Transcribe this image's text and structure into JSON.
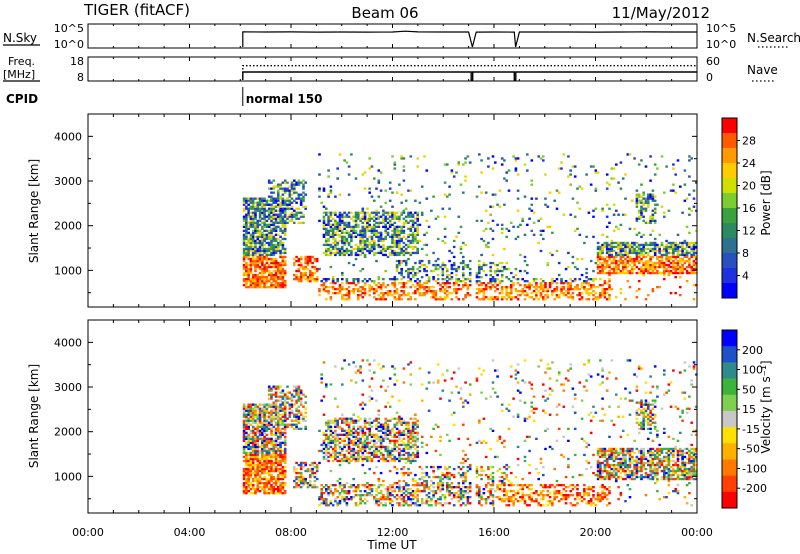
{
  "header": {
    "title": "TIGER (fitACF)",
    "beam": "Beam 06",
    "date": "11/May/2012"
  },
  "chart_data": [
    {
      "type": "line",
      "panel": "noise",
      "left_label": "N.Sky",
      "right_label": "N.Search",
      "left_ticks": [
        "10^5",
        "10^0"
      ],
      "right_ticks": [
        "10^5",
        "10^0"
      ],
      "y_scale": "log",
      "ylim": [
        1,
        100000
      ],
      "x_hours": [
        6.1,
        7,
        8,
        9,
        10,
        11,
        12,
        12.5,
        13,
        14,
        15,
        15.15,
        15.3,
        16,
        16.8,
        16.85,
        17,
        18,
        19,
        20,
        21,
        22,
        23,
        24
      ],
      "n_sky": [
        6000,
        5500,
        6000,
        5200,
        5600,
        5400,
        5600,
        9000,
        5800,
        5500,
        5600,
        1,
        5400,
        5500,
        5400,
        1,
        5500,
        5600,
        5700,
        5400,
        5600,
        6000,
        5600,
        5600
      ],
      "gaps_hours": [
        15.1,
        16.8
      ]
    },
    {
      "type": "line",
      "panel": "frequency",
      "left_label_lines": [
        "Freq.",
        "[MHz]"
      ],
      "right_label": "Nave",
      "left_ticks": [
        "18",
        "8"
      ],
      "right_ticks": [
        "60",
        "0"
      ],
      "ylim": [
        8,
        18
      ],
      "freq_mhz": 11.8,
      "nave": 41,
      "start_hour": 6.1,
      "gaps_hours": [
        15.1,
        16.8
      ]
    },
    {
      "type": "table",
      "panel": "cpid",
      "label": "CPID",
      "segments": [
        {
          "start_hour": 6.1,
          "label": "normal 150"
        }
      ]
    },
    {
      "type": "heatmap",
      "panel": "power",
      "ylabel": "Slant Range [km]",
      "yticks": [
        1000,
        2000,
        3000,
        4000
      ],
      "ylim": [
        180,
        4500
      ],
      "colorbar_label": "Power [dB]",
      "colorbar_ticks": [
        "28",
        "24",
        "20",
        "16",
        "12",
        "8",
        "4"
      ],
      "colorbar_colors": [
        "#ff0000",
        "#ff5a00",
        "#ff9a00",
        "#ffcc00",
        "#cfe000",
        "#7dcc30",
        "#3ca03c",
        "#2c8a60",
        "#2f7090",
        "#2850c0",
        "#1f30e0",
        "#0000ff"
      ],
      "value_range_db": [
        0,
        30
      ]
    },
    {
      "type": "heatmap",
      "panel": "velocity",
      "ylabel": "Slant Range [km]",
      "yticks": [
        1000,
        2000,
        3000,
        4000
      ],
      "ylim": [
        180,
        4500
      ],
      "colorbar_label": "Velocity [m s⁻¹]",
      "colorbar_ticks": [
        "200",
        "100",
        "50",
        "15",
        "-15",
        "-50",
        "-100",
        "-200"
      ],
      "colorbar_colors": [
        "#0000ff",
        "#1e50c8",
        "#2f8a8a",
        "#3cb43c",
        "#80d050",
        "#c8c8c8",
        "#ffe000",
        "#ffb000",
        "#ff7800",
        "#ff4000",
        "#ff0000"
      ],
      "value_range_ms": [
        -250,
        250
      ]
    }
  ],
  "x_axis": {
    "label": "Time UT",
    "xlim": [
      0,
      24
    ],
    "tick_labels": [
      "00:00",
      "04:00",
      "08:00",
      "12:00",
      "16:00",
      "20:00",
      "00:00"
    ]
  }
}
